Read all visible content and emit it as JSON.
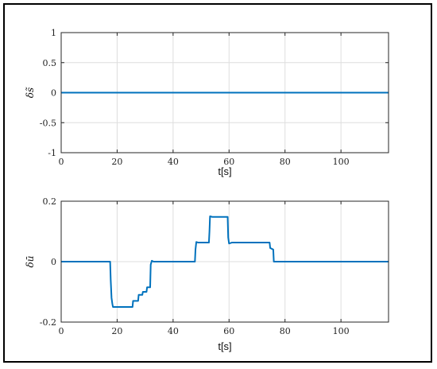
{
  "chart_data": [
    {
      "type": "line",
      "title": "",
      "xlabel": "t[s]",
      "ylabel": "δs̃",
      "xlim": [
        0,
        117
      ],
      "ylim": [
        -1,
        1
      ],
      "xticks": [
        0,
        20,
        40,
        60,
        80,
        100
      ],
      "xtick_labels": [
        "0",
        "20",
        "40",
        "60",
        "80",
        "100"
      ],
      "yticks": [
        -1,
        -0.5,
        0,
        0.5,
        1
      ],
      "ytick_labels": [
        "-1",
        "-0.5",
        "0",
        "0.5",
        "1"
      ],
      "grid": true,
      "series": [
        {
          "color": "#0072bd",
          "x": [
            0,
            117
          ],
          "y": [
            0,
            0
          ]
        }
      ]
    },
    {
      "type": "line",
      "title": "",
      "xlabel": "t[s]",
      "ylabel": "δū",
      "xlim": [
        0,
        117
      ],
      "ylim": [
        -0.2,
        0.2
      ],
      "xticks": [
        0,
        20,
        40,
        60,
        80,
        100
      ],
      "xtick_labels": [
        "0",
        "20",
        "40",
        "60",
        "80",
        "100"
      ],
      "yticks": [
        -0.2,
        0,
        0.2
      ],
      "ytick_labels": [
        "-0.2",
        "0",
        "0.2"
      ],
      "grid": true,
      "series": [
        {
          "color": "#0072bd",
          "x": [
            0,
            17.5,
            17.7,
            18.0,
            18.3,
            18.5,
            25.5,
            25.7,
            27.5,
            27.7,
            29.0,
            29.2,
            30.5,
            30.7,
            31.8,
            32.0,
            32.4,
            33,
            47.8,
            48.0,
            48.3,
            49,
            52.8,
            53.0,
            53.2,
            54,
            59.5,
            59.7,
            60.0,
            61,
            74.5,
            74.7,
            75.8,
            76.0,
            77,
            117
          ],
          "y": [
            0,
            0,
            -0.06,
            -0.12,
            -0.14,
            -0.15,
            -0.15,
            -0.13,
            -0.13,
            -0.11,
            -0.11,
            -0.1,
            -0.1,
            -0.085,
            -0.085,
            -0.01,
            0.003,
            0,
            0,
            0.04,
            0.065,
            0.063,
            0.063,
            0.1,
            0.15,
            0.148,
            0.148,
            0.08,
            0.06,
            0.063,
            0.063,
            0.045,
            0.04,
            0.0,
            0,
            0
          ]
        }
      ]
    }
  ]
}
